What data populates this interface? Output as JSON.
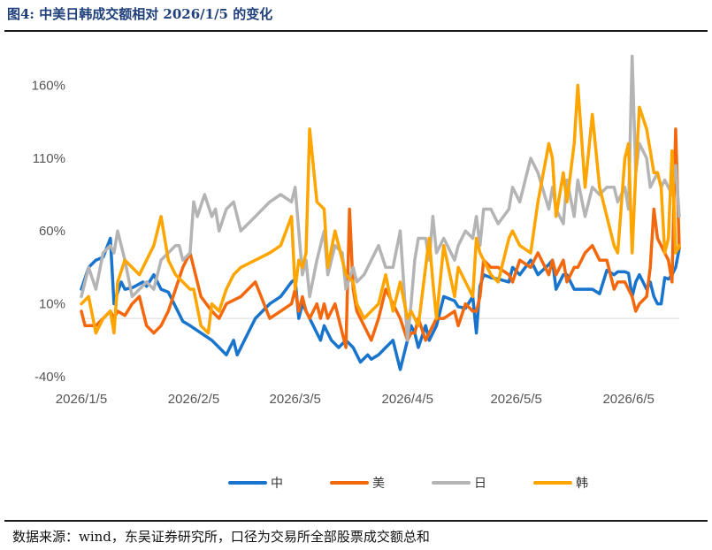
{
  "header": {
    "title": "图4:  中美日韩成交额相对 2026/1/5 的变化"
  },
  "footer": {
    "source": "数据来源：wind，东吴证券研究所，口径为交易所全部股票成交额总和"
  },
  "chart_data": {
    "type": "line",
    "title": "图4:  中美日韩成交额相对 2026/1/5 的变化",
    "y_tick_labels": [
      "160%",
      "110%",
      "60%",
      "10%",
      "-40%"
    ],
    "y_ticks": [
      160,
      110,
      60,
      10,
      -40
    ],
    "ylim": [
      -40,
      170
    ],
    "x_tick_labels": [
      "2026/1/5",
      "2026/2/5",
      "2026/3/5",
      "2026/4/5",
      "2026/5/5",
      "2026/6/5"
    ],
    "x_ticks": [
      0,
      31,
      59,
      90,
      120,
      151
    ],
    "xlim": [
      0,
      165
    ],
    "legend_position": "bottom",
    "baseline": 0,
    "series": [
      {
        "name": "中",
        "color": "#1874CD",
        "x": [
          0,
          2,
          4,
          6,
          8,
          9,
          10,
          11,
          12,
          14,
          17,
          18,
          20,
          22,
          24,
          26,
          28,
          30,
          33,
          36,
          38,
          40,
          41,
          42,
          43,
          45,
          48,
          50,
          52,
          55,
          58,
          59,
          60,
          61,
          62,
          63,
          64,
          65,
          66,
          67,
          68,
          69,
          71,
          73,
          75,
          76,
          77,
          79,
          80,
          82,
          84,
          86,
          88,
          90,
          91,
          92,
          93,
          95,
          96,
          97,
          98,
          100,
          103,
          104,
          106,
          108,
          109,
          110,
          111,
          113,
          115,
          118,
          119,
          121,
          124,
          126,
          129,
          130,
          131,
          133,
          134,
          136,
          137,
          139,
          141,
          143,
          145,
          147,
          148,
          150,
          151,
          152,
          153,
          154,
          156,
          157,
          158,
          159,
          160,
          161,
          162,
          163,
          164,
          165
        ],
        "y": [
          20,
          35,
          40,
          42,
          55,
          10,
          18,
          25,
          20,
          21,
          25,
          22,
          30,
          20,
          18,
          8,
          -2,
          -5,
          -10,
          -15,
          -20,
          -25,
          -20,
          -15,
          -25,
          -15,
          0,
          5,
          10,
          15,
          25,
          27,
          0,
          10,
          5,
          0,
          -5,
          -10,
          -15,
          -5,
          -10,
          -15,
          -20,
          -15,
          -20,
          -25,
          -30,
          -25,
          -28,
          -25,
          -20,
          -15,
          -35,
          -15,
          -5,
          -10,
          -20,
          -5,
          -15,
          -10,
          -5,
          15,
          12,
          8,
          7,
          15,
          -10,
          22,
          30,
          28,
          27,
          25,
          35,
          30,
          40,
          30,
          37,
          40,
          20,
          30,
          30,
          20,
          20,
          20,
          20,
          17,
          33,
          30,
          32,
          32,
          31,
          15,
          25,
          30,
          20,
          25,
          15,
          10,
          10,
          28,
          27,
          30,
          35,
          48
        ]
      },
      {
        "name": "美",
        "color": "#F4680D",
        "x": [
          0,
          1,
          2,
          4,
          6,
          8,
          9,
          10,
          12,
          14,
          16,
          18,
          20,
          22,
          24,
          26,
          28,
          30,
          33,
          36,
          38,
          40,
          44,
          48,
          52,
          55,
          58,
          59,
          60,
          61,
          62,
          63,
          65,
          66,
          67,
          68,
          70,
          72,
          73,
          74,
          75,
          76,
          78,
          80,
          82,
          84,
          86,
          88,
          90,
          91,
          92,
          93,
          95,
          96,
          97,
          98,
          100,
          103,
          104,
          106,
          108,
          109,
          110,
          111,
          113,
          115,
          118,
          119,
          121,
          124,
          126,
          129,
          130,
          131,
          133,
          134,
          136,
          137,
          139,
          141,
          143,
          145,
          147,
          148,
          150,
          151,
          152,
          153,
          154,
          156,
          157,
          158,
          159,
          160,
          161,
          162,
          163,
          164,
          165
        ],
        "y": [
          5,
          -5,
          -5,
          -5,
          0,
          5,
          0,
          5,
          2,
          10,
          15,
          -5,
          -10,
          -5,
          5,
          20,
          35,
          45,
          15,
          5,
          0,
          10,
          15,
          25,
          0,
          5,
          10,
          20,
          5,
          15,
          5,
          0,
          10,
          0,
          10,
          0,
          10,
          -10,
          -20,
          75,
          20,
          5,
          -5,
          -15,
          0,
          20,
          10,
          0,
          -15,
          -10,
          -10,
          0,
          -15,
          -10,
          -5,
          0,
          0,
          5,
          -5,
          10,
          5,
          5,
          15,
          40,
          35,
          35,
          30,
          25,
          40,
          35,
          45,
          30,
          40,
          30,
          40,
          25,
          35,
          35,
          45,
          50,
          40,
          40,
          20,
          25,
          25,
          20,
          15,
          5,
          10,
          15,
          35,
          75,
          55,
          50,
          45,
          40,
          25,
          130,
          48
        ]
      },
      {
        "name": "日",
        "color": "#B4B4B4",
        "x": [
          0,
          2,
          4,
          6,
          8,
          9,
          10,
          12,
          14,
          16,
          18,
          20,
          22,
          24,
          26,
          27,
          28,
          30,
          31,
          32,
          34,
          36,
          37,
          38,
          40,
          42,
          44,
          48,
          52,
          55,
          58,
          59,
          60,
          61,
          62,
          63,
          65,
          67,
          68,
          70,
          72,
          73,
          75,
          76,
          78,
          80,
          82,
          84,
          86,
          88,
          90,
          91,
          92,
          93,
          95,
          96,
          97,
          98,
          100,
          103,
          104,
          106,
          108,
          109,
          110,
          111,
          113,
          115,
          118,
          119,
          121,
          124,
          126,
          129,
          130,
          131,
          133,
          134,
          136,
          137,
          139,
          141,
          143,
          145,
          147,
          148,
          150,
          151,
          152,
          153,
          154,
          156,
          157,
          158,
          159,
          160,
          161,
          162,
          163,
          164,
          165
        ],
        "y": [
          15,
          35,
          20,
          45,
          50,
          45,
          60,
          40,
          15,
          20,
          25,
          20,
          40,
          45,
          50,
          50,
          40,
          45,
          80,
          70,
          85,
          70,
          75,
          60,
          75,
          80,
          60,
          70,
          80,
          85,
          80,
          90,
          60,
          30,
          40,
          15,
          40,
          60,
          30,
          50,
          45,
          20,
          35,
          25,
          30,
          40,
          50,
          35,
          35,
          60,
          -15,
          10,
          40,
          55,
          55,
          40,
          70,
          45,
          55,
          40,
          50,
          60,
          55,
          70,
          50,
          75,
          75,
          65,
          75,
          90,
          80,
          110,
          100,
          75,
          90,
          75,
          65,
          95,
          70,
          95,
          70,
          90,
          85,
          90,
          90,
          80,
          90,
          75,
          180,
          100,
          120,
          110,
          90,
          95,
          100,
          90,
          95,
          90,
          85,
          105,
          70
        ]
      },
      {
        "name": "韩",
        "color": "#FFA500",
        "x": [
          0,
          2,
          4,
          6,
          8,
          9,
          10,
          12,
          14,
          16,
          18,
          20,
          22,
          24,
          26,
          28,
          30,
          31,
          33,
          35,
          36,
          38,
          40,
          42,
          44,
          48,
          52,
          55,
          58,
          59,
          60,
          61,
          62,
          63,
          65,
          67,
          68,
          70,
          72,
          73,
          75,
          76,
          78,
          80,
          82,
          84,
          86,
          88,
          90,
          91,
          92,
          93,
          95,
          96,
          97,
          98,
          100,
          103,
          104,
          106,
          108,
          109,
          110,
          111,
          113,
          115,
          118,
          119,
          121,
          124,
          126,
          129,
          130,
          131,
          133,
          134,
          136,
          137,
          139,
          141,
          143,
          145,
          147,
          148,
          150,
          151,
          152,
          153,
          154,
          156,
          157,
          158,
          159,
          160,
          161,
          162,
          163,
          164,
          165
        ],
        "y": [
          10,
          15,
          -10,
          0,
          5,
          -10,
          25,
          40,
          35,
          30,
          40,
          50,
          70,
          40,
          30,
          25,
          20,
          20,
          -5,
          -10,
          10,
          5,
          20,
          30,
          35,
          40,
          45,
          50,
          70,
          20,
          40,
          35,
          45,
          130,
          80,
          75,
          35,
          60,
          40,
          30,
          25,
          10,
          0,
          5,
          10,
          30,
          5,
          25,
          0,
          5,
          0,
          -5,
          35,
          55,
          25,
          0,
          50,
          15,
          35,
          25,
          15,
          55,
          45,
          40,
          30,
          25,
          55,
          60,
          50,
          45,
          80,
          120,
          110,
          70,
          100,
          80,
          120,
          160,
          90,
          140,
          90,
          70,
          50,
          45,
          110,
          120,
          45,
          100,
          145,
          130,
          115,
          100,
          100,
          90,
          45,
          55,
          115,
          45,
          50
        ]
      }
    ]
  },
  "legend": {
    "items": [
      "中",
      "美",
      "日",
      "韩"
    ]
  }
}
